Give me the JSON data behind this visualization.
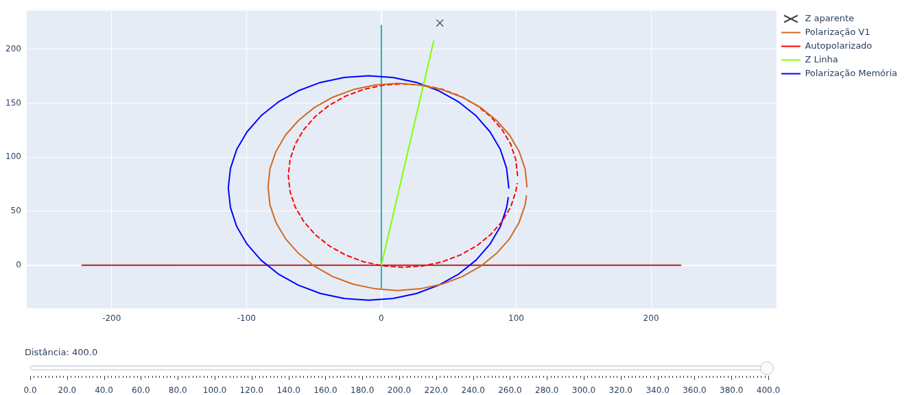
{
  "chart_data": {
    "type": "line",
    "xlim": [
      -263,
      293
    ],
    "ylim": [
      -40,
      236
    ],
    "xticks": [
      -200,
      -100,
      0,
      100,
      200
    ],
    "yticks": [
      0,
      50,
      100,
      150,
      200
    ],
    "grid": true,
    "legend": "right",
    "marker": "none",
    "series": [
      {
        "name": "Z aparente",
        "type": "scatter",
        "marker": "cross",
        "color": "#444444",
        "x": [
          43.4
        ],
        "values": [
          224.3
        ]
      },
      {
        "name": "Polarização V1",
        "color": "#d2691e",
        "x": [
          108,
          106.6,
          102.2,
          95.1,
          85.5,
          73.7,
          60,
          44.8,
          28.7,
          12,
          -4.7,
          -20.8,
          -36,
          -49.7,
          -61.5,
          -71.1,
          -78.2,
          -82.6,
          -84,
          -82.6,
          -78.2,
          -71.1,
          -61.5,
          -49.7,
          -36,
          -20.8,
          -4.7,
          12,
          28.7,
          44.8,
          60,
          73.7,
          85.5,
          95.1,
          102.2,
          106.6,
          107.6
        ],
        "values": [
          72.5,
          89.2,
          105.3,
          120.5,
          134,
          146,
          155.6,
          162.7,
          166.9,
          168.5,
          166.9,
          162.7,
          155.6,
          146,
          134,
          120.5,
          105.3,
          89.2,
          72.5,
          55.8,
          39.7,
          24.5,
          11,
          -1,
          -10.6,
          -17.7,
          -21.9,
          -23.5,
          -21.9,
          -17.7,
          -10.6,
          -1,
          11,
          24.5,
          39.7,
          55.8,
          64.1
        ]
      },
      {
        "name": "Autopolarizado",
        "color": "#ff0000",
        "line_style": "dashed",
        "x": [
          101,
          99.7,
          95.9,
          89.6,
          81.1,
          70.7,
          58.5,
          45.1,
          30.8,
          16,
          1.2,
          -13.1,
          -26.5,
          -38.7,
          -49.1,
          -57.6,
          -63.9,
          -67.7,
          -69,
          -67.7,
          -63.9,
          -57.6,
          -49.1,
          -38.7,
          -26.5,
          -13.1,
          1.2,
          16,
          30.8,
          45.1,
          58.5,
          70.7,
          81.1,
          89.6,
          95.9,
          99.7,
          100.7
        ],
        "values": [
          83,
          97.8,
          112.1,
          125.5,
          137.6,
          148.1,
          156.6,
          162.9,
          166.7,
          168,
          166.7,
          162.9,
          156.6,
          148.1,
          137.6,
          125.5,
          112.1,
          97.8,
          83,
          68.2,
          53.9,
          40.5,
          28.4,
          17.9,
          9.4,
          3.1,
          -0.7,
          -2,
          -0.7,
          3.1,
          9.4,
          17.9,
          28.4,
          40.5,
          53.9,
          68.2,
          75.6
        ]
      },
      {
        "name": "Z Linha",
        "color": "#7fff00",
        "x": [
          0,
          38.8
        ],
        "values": [
          0,
          207.5
        ]
      },
      {
        "name": "Polarização Memória",
        "color": "#0000ff",
        "x": [
          94.5,
          92.9,
          88.3,
          80.6,
          70.2,
          57.4,
          42.5,
          26.1,
          8.6,
          -9.5,
          -27.6,
          -45.1,
          -61.5,
          -76.4,
          -89.2,
          -99.6,
          -107.3,
          -111.9,
          -113.5,
          -111.9,
          -107.3,
          -99.6,
          -89.2,
          -76.4,
          -61.5,
          -45.1,
          -27.6,
          -9.5,
          8.6,
          26.1,
          42.5,
          57.4,
          70.2,
          80.6,
          88.3,
          92.9,
          94.1
        ],
        "values": [
          71.5,
          89.6,
          107.1,
          123.5,
          138.4,
          151.2,
          161.6,
          169.3,
          173.9,
          175.5,
          173.9,
          169.3,
          161.6,
          151.2,
          138.4,
          123.5,
          107.1,
          89.6,
          71.5,
          53.4,
          35.9,
          19.5,
          4.6,
          -8.2,
          -18.6,
          -26.3,
          -30.9,
          -32.5,
          -30.9,
          -26.3,
          -18.6,
          -8.2,
          4.6,
          19.5,
          35.9,
          53.4,
          62.5
        ]
      },
      {
        "color": "#b22222",
        "x": [
          -222,
          222
        ],
        "values": [
          0,
          0
        ]
      },
      {
        "color": "#20b2aa",
        "x": [
          0,
          0
        ],
        "values": [
          -21,
          222
        ]
      }
    ],
    "annotations": [
      "Distância: 400.0",
      "0.0",
      "20.0",
      "40.0",
      "60.0",
      "80.0",
      "100.0",
      "120.0",
      "140.0",
      "160.0",
      "180.0",
      "200.0",
      "220.0",
      "240.0",
      "260.0",
      "280.0",
      "300.0",
      "320.0",
      "340.0",
      "360.0",
      "380.0",
      "400.0"
    ]
  }
}
